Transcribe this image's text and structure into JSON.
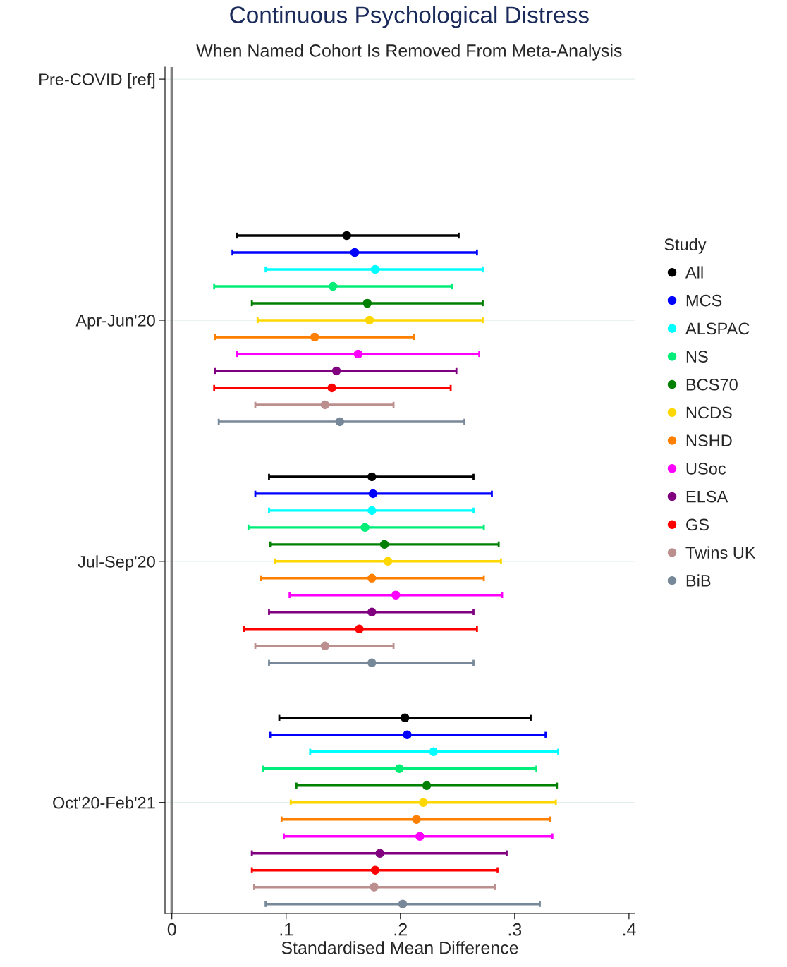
{
  "chart_data": {
    "type": "scatter",
    "orientation": "horizontal",
    "title": "Continuous Psychological Distress",
    "subtitle": "When Named Cohort Is Removed From Meta-Analysis",
    "xlabel": "Standardised Mean Difference",
    "legend_title": "Study",
    "legend": "right",
    "marker": "circle",
    "grid": "y",
    "categories": [
      "Pre-COVID [ref]",
      "Apr-Jun'20",
      "Jul-Sep'20",
      "Oct'20-Feb'21"
    ],
    "xlim": [
      -0.006,
      0.405
    ],
    "xticks": [
      0,
      {
        "value": 0.1,
        "label": ".1"
      },
      {
        "value": 0.2,
        "label": ".2"
      },
      {
        "value": 0.3,
        "label": ".3"
      },
      {
        "value": 0.4,
        "label": ".4"
      }
    ],
    "ref_lines": [
      {
        "axis": "x",
        "value": 0,
        "color": "#808080"
      }
    ],
    "series": [
      {
        "name": "All",
        "color": "#000000",
        "values": [
          null,
          0.153,
          0.175,
          0.204
        ],
        "errors": [
          null,
          [
            0.057,
            0.251
          ],
          [
            0.085,
            0.264
          ],
          [
            0.094,
            0.314
          ]
        ]
      },
      {
        "name": "MCS",
        "color": "#0000ff",
        "values": [
          null,
          0.16,
          0.176,
          0.206
        ],
        "errors": [
          null,
          [
            0.053,
            0.267
          ],
          [
            0.073,
            0.28
          ],
          [
            0.086,
            0.327
          ]
        ]
      },
      {
        "name": "ALSPAC",
        "color": "#00ffff",
        "values": [
          null,
          0.178,
          0.175,
          0.229
        ],
        "errors": [
          null,
          [
            0.082,
            0.272
          ],
          [
            0.085,
            0.264
          ],
          [
            0.121,
            0.338
          ]
        ]
      },
      {
        "name": "NS",
        "color": "#00ee77",
        "values": [
          null,
          0.141,
          0.169,
          0.199
        ],
        "errors": [
          null,
          [
            0.037,
            0.245
          ],
          [
            0.067,
            0.273
          ],
          [
            0.08,
            0.319
          ]
        ]
      },
      {
        "name": "BCS70",
        "color": "#008000",
        "values": [
          null,
          0.171,
          0.186,
          0.223
        ],
        "errors": [
          null,
          [
            0.07,
            0.272
          ],
          [
            0.086,
            0.286
          ],
          [
            0.109,
            0.337
          ]
        ]
      },
      {
        "name": "NCDS",
        "color": "#ffd700",
        "values": [
          null,
          0.173,
          0.189,
          0.22
        ],
        "errors": [
          null,
          [
            0.075,
            0.272
          ],
          [
            0.09,
            0.288
          ],
          [
            0.104,
            0.336
          ]
        ]
      },
      {
        "name": "NSHD",
        "color": "#ff8000",
        "values": [
          null,
          0.125,
          0.175,
          0.214
        ],
        "errors": [
          null,
          [
            0.038,
            0.212
          ],
          [
            0.078,
            0.273
          ],
          [
            0.096,
            0.331
          ]
        ]
      },
      {
        "name": "USoc",
        "color": "#ff00ff",
        "values": [
          null,
          0.163,
          0.196,
          0.217
        ],
        "errors": [
          null,
          [
            0.057,
            0.269
          ],
          [
            0.103,
            0.289
          ],
          [
            0.098,
            0.333
          ]
        ]
      },
      {
        "name": "ELSA",
        "color": "#800080",
        "values": [
          null,
          0.144,
          0.175,
          0.182
        ],
        "errors": [
          null,
          [
            0.038,
            0.249
          ],
          [
            0.085,
            0.264
          ],
          [
            0.07,
            0.293
          ]
        ]
      },
      {
        "name": "GS",
        "color": "#ff0000",
        "values": [
          null,
          0.14,
          0.164,
          0.178
        ],
        "errors": [
          null,
          [
            0.037,
            0.244
          ],
          [
            0.063,
            0.267
          ],
          [
            0.07,
            0.285
          ]
        ]
      },
      {
        "name": "Twins UK",
        "color": "#bc8f8f",
        "values": [
          null,
          0.134,
          0.134,
          0.177
        ],
        "errors": [
          null,
          [
            0.073,
            0.194
          ],
          [
            0.073,
            0.194
          ],
          [
            0.072,
            0.283
          ]
        ]
      },
      {
        "name": "BiB",
        "color": "#778899",
        "values": [
          null,
          0.147,
          0.175,
          0.202
        ],
        "errors": [
          null,
          [
            0.041,
            0.256
          ],
          [
            0.085,
            0.264
          ],
          [
            0.082,
            0.322
          ]
        ]
      }
    ]
  }
}
